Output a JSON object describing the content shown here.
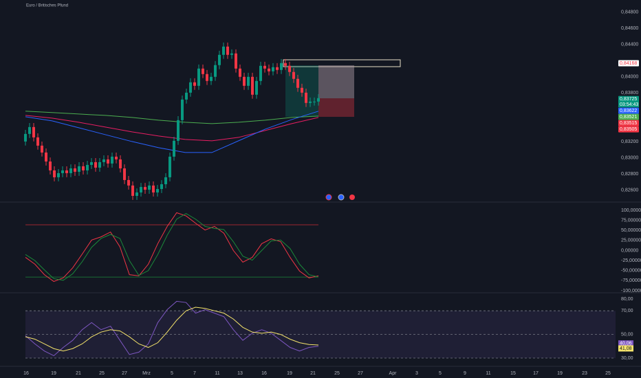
{
  "chart_data": [
    {
      "type": "candlestick",
      "title": "Euro / Britisches Pfund",
      "up_color": "#089981",
      "down_color": "#f23645",
      "open": [
        0.832,
        0.83294,
        0.83379,
        0.83251,
        0.83149,
        0.83064,
        0.82953,
        0.82843,
        0.82758,
        0.82809,
        0.82843,
        0.82809,
        0.82868,
        0.82826,
        0.82894,
        0.82843,
        0.82911,
        0.82945,
        0.82877,
        0.82945,
        0.82979,
        0.82928,
        0.83013,
        0.82979,
        0.82868,
        0.82724,
        0.82656,
        0.82528,
        0.8257,
        0.82638,
        0.82604,
        0.82656,
        0.8257,
        0.82613,
        0.82672,
        0.82758,
        0.83013,
        0.83209,
        0.83464,
        0.83719,
        0.83804,
        0.83932,
        0.83889,
        0.84102,
        0.84034,
        0.83949,
        0.84,
        0.84145,
        0.84272,
        0.84374,
        0.84272,
        0.84289,
        0.84102,
        0.84,
        0.83889,
        0.84,
        0.83779,
        0.83949,
        0.84136,
        0.84102,
        0.84068,
        0.84119,
        0.84085,
        0.8417,
        0.84136,
        0.8406,
        0.83975,
        0.83864,
        0.83804,
        0.83677,
        0.83694,
        0.83694
      ],
      "high": [
        0.83344,
        0.83429,
        0.83429,
        0.83301,
        0.83199,
        0.83114,
        0.83003,
        0.82893,
        0.82859,
        0.82893,
        0.82893,
        0.82918,
        0.82918,
        0.82944,
        0.82944,
        0.82961,
        0.82995,
        0.82995,
        0.82995,
        0.83029,
        0.83029,
        0.83063,
        0.83063,
        0.83029,
        0.82918,
        0.82774,
        0.82706,
        0.8262,
        0.82688,
        0.82688,
        0.82706,
        0.82706,
        0.82663,
        0.82722,
        0.82808,
        0.83063,
        0.83259,
        0.83514,
        0.83769,
        0.83854,
        0.83982,
        0.83982,
        0.84152,
        0.84152,
        0.84084,
        0.8405,
        0.84195,
        0.84322,
        0.84424,
        0.84424,
        0.84339,
        0.84339,
        0.84152,
        0.8405,
        0.8405,
        0.8405,
        0.83999,
        0.84186,
        0.84186,
        0.84152,
        0.84169,
        0.84169,
        0.8422,
        0.8422,
        0.84186,
        0.8411,
        0.84025,
        0.83914,
        0.83854,
        0.83744,
        0.83744,
        0.83786
      ],
      "low": [
        0.8315,
        0.83244,
        0.83201,
        0.83099,
        0.83014,
        0.82903,
        0.82793,
        0.82708,
        0.82708,
        0.82759,
        0.82759,
        0.82759,
        0.82776,
        0.82776,
        0.82793,
        0.82793,
        0.82861,
        0.82827,
        0.82827,
        0.82895,
        0.82878,
        0.82878,
        0.82929,
        0.82818,
        0.82674,
        0.82606,
        0.82478,
        0.82478,
        0.8252,
        0.82554,
        0.82554,
        0.8252,
        0.8252,
        0.82563,
        0.82622,
        0.82708,
        0.82963,
        0.83159,
        0.83414,
        0.83669,
        0.83754,
        0.83839,
        0.83839,
        0.83984,
        0.83899,
        0.83899,
        0.8395,
        0.84095,
        0.84222,
        0.84222,
        0.84222,
        0.84052,
        0.8395,
        0.83839,
        0.83839,
        0.83729,
        0.83729,
        0.83899,
        0.84052,
        0.84018,
        0.84018,
        0.84035,
        0.84035,
        0.84086,
        0.8401,
        0.83925,
        0.83814,
        0.83754,
        0.83627,
        0.83627,
        0.83644,
        0.83644
      ],
      "close": [
        0.83294,
        0.83379,
        0.83251,
        0.83149,
        0.83064,
        0.82953,
        0.82843,
        0.82758,
        0.82809,
        0.82843,
        0.82809,
        0.82868,
        0.82826,
        0.82894,
        0.82843,
        0.82911,
        0.82945,
        0.82877,
        0.82945,
        0.82979,
        0.82928,
        0.83013,
        0.82979,
        0.82868,
        0.82724,
        0.82656,
        0.82528,
        0.8257,
        0.82638,
        0.82604,
        0.82656,
        0.8257,
        0.82613,
        0.82672,
        0.82758,
        0.83013,
        0.83209,
        0.83464,
        0.83719,
        0.83804,
        0.83932,
        0.83889,
        0.84102,
        0.84034,
        0.83949,
        0.84,
        0.84145,
        0.84272,
        0.84374,
        0.84272,
        0.84289,
        0.84102,
        0.84,
        0.83889,
        0.84,
        0.83779,
        0.83949,
        0.84136,
        0.84102,
        0.84068,
        0.84119,
        0.84085,
        0.8417,
        0.84136,
        0.8406,
        0.83975,
        0.83864,
        0.83804,
        0.83677,
        0.83694,
        0.83694,
        0.83736
      ],
      "series": [
        {
          "color": "#4caf50",
          "values": [
            0.83575,
            0.83558,
            0.8354,
            0.83523,
            0.83498,
            0.83464,
            0.83438,
            0.83421,
            0.83438,
            0.83464,
            0.83498,
            0.83515
          ]
        },
        {
          "color": "#e91e63",
          "values": [
            0.83523,
            0.83489,
            0.83438,
            0.83379,
            0.83319,
            0.83268,
            0.83226,
            0.83209,
            0.83251,
            0.83336,
            0.83421,
            0.83498
          ]
        },
        {
          "color": "#2962ff",
          "values": [
            0.83506,
            0.83455,
            0.8337,
            0.83285,
            0.832,
            0.83124,
            0.83064,
            0.83064,
            0.83209,
            0.83353,
            0.83472,
            0.83575
          ]
        }
      ],
      "ylim": [
        0.8246,
        0.8495
      ],
      "yticks": [
        {
          "value": 0.848,
          "label": "0,84800"
        },
        {
          "value": 0.846,
          "label": "0,84600"
        },
        {
          "value": 0.844,
          "label": "0,84400"
        },
        {
          "value": 0.84,
          "label": "0,84000"
        },
        {
          "value": 0.838,
          "label": "0,83800"
        },
        {
          "value": 0.832,
          "label": "0,83200"
        },
        {
          "value": 0.83,
          "label": "0,83000"
        },
        {
          "value": 0.828,
          "label": "0,82800"
        },
        {
          "value": 0.826,
          "label": "0,82600"
        }
      ],
      "price_tags": [
        {
          "value": 0.84168,
          "label": "0,84168",
          "color": "#ffffff",
          "text_color": "#f23645"
        },
        {
          "value": 0.83725,
          "label": "0,83725",
          "color": "#089981",
          "text_color": "#ffffff"
        },
        {
          "value": 0.83622,
          "label": "0,83622",
          "color": "#2962ff",
          "text_color": "#ffffff"
        },
        {
          "value": 0.83521,
          "label": "0,83521",
          "color": "#4caf50",
          "text_color": "#ffffff"
        },
        {
          "value": 0.83515,
          "label": "0,83515",
          "color": "#f23645",
          "text_color": "#ffffff"
        },
        {
          "value": 0.83505,
          "label": "0,83505",
          "color": "#f23645",
          "text_color": "#ffffff"
        }
      ],
      "countdown": "03:54:43"
    },
    {
      "type": "line",
      "series": [
        {
          "color": "#f23645",
          "values": [
            -17,
            -34,
            -60,
            -77,
            -68,
            -43,
            -9,
            26,
            34,
            46,
            9,
            -60,
            -63,
            -34,
            17,
            60,
            94,
            86,
            68,
            51,
            60,
            43,
            0,
            -29,
            -17,
            17,
            29,
            22,
            -17,
            -51,
            -68,
            -63
          ]
        },
        {
          "color": "#1b8a3a",
          "values": [
            -10,
            -25,
            -48,
            -70,
            -74,
            -58,
            -28,
            8,
            30,
            40,
            30,
            -25,
            -62,
            -50,
            -10,
            38,
            78,
            92,
            78,
            60,
            55,
            52,
            22,
            -14,
            -24,
            0,
            24,
            26,
            5,
            -34,
            -60,
            -66
          ]
        }
      ],
      "hlines": [
        {
          "value": 64,
          "color": "#b22833"
        },
        {
          "value": -66,
          "color": "#1b8a3a"
        }
      ],
      "ylim": [
        -103.4,
        118.8
      ],
      "yticks": [
        {
          "value": 100,
          "label": "100,00000"
        },
        {
          "value": 75,
          "label": "75,00000"
        },
        {
          "value": 50,
          "label": "50,00000"
        },
        {
          "value": 25,
          "label": "25,00000"
        },
        {
          "value": 0,
          "label": "0,00000"
        },
        {
          "value": -25,
          "label": "-25,00000"
        },
        {
          "value": -50,
          "label": "-50,00000"
        },
        {
          "value": -75,
          "label": "-75,00000"
        },
        {
          "value": -100,
          "label": "-100,00000"
        }
      ]
    },
    {
      "type": "line",
      "series": [
        {
          "color": "#7e57c2",
          "values": [
            49,
            42,
            36,
            32,
            39,
            45,
            54,
            60,
            54,
            57,
            45,
            33,
            35,
            42,
            60,
            71,
            78,
            77,
            68,
            71,
            68,
            65,
            54,
            45,
            51,
            54,
            51,
            45,
            39,
            36,
            39,
            40.06
          ],
          "last_label": "40,06"
        },
        {
          "color": "#f5e46b",
          "values": [
            48,
            46,
            42,
            38,
            36,
            38,
            42,
            48,
            52,
            54,
            53,
            48,
            42,
            39,
            43,
            52,
            62,
            70,
            73,
            72,
            70,
            68,
            63,
            56,
            52,
            51,
            52,
            50,
            46,
            43,
            41.5,
            41.08
          ],
          "last_label": "41,08"
        }
      ],
      "hlines": [
        {
          "value": 70,
          "color": "#787b86"
        },
        {
          "value": 50,
          "color": "#787b86"
        },
        {
          "value": 30,
          "color": "#787b86"
        }
      ],
      "band_color": "#7e57c2",
      "ylim": [
        24.77,
        84.07
      ],
      "yticks": [
        {
          "value": 80,
          "label": "80,00"
        },
        {
          "value": 70,
          "label": "70,00"
        },
        {
          "value": 50,
          "label": "50,00"
        },
        {
          "value": 30,
          "label": "30,00"
        }
      ],
      "xaxis_labels": [
        "16",
        "19",
        "21",
        "25",
        "27",
        "Mrz",
        "5",
        "7",
        "11",
        "13",
        "16",
        "19",
        "21",
        "25",
        "27",
        "Apr",
        "3",
        "5",
        "9",
        "11",
        "15",
        "17",
        "19",
        "23",
        "25"
      ]
    }
  ]
}
